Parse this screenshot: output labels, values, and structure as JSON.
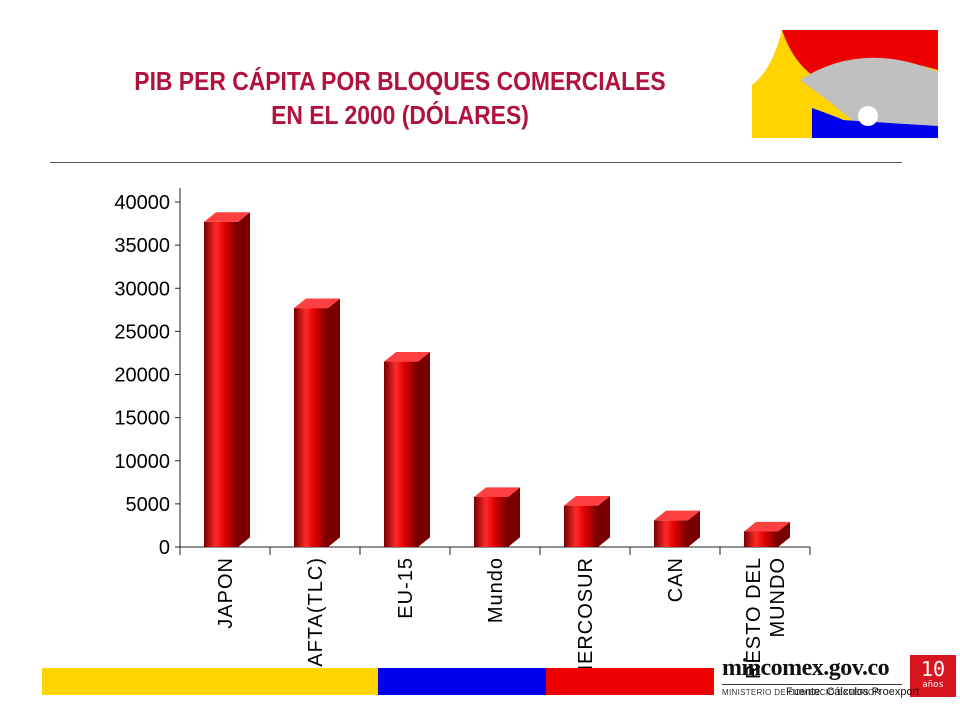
{
  "header": {
    "title_line1": "PIB PER CÁPITA POR BLOQUES COMERCIALES",
    "title_line2": "EN EL 2000 (DÓLARES)"
  },
  "colors": {
    "title": "#b0123d",
    "bar": "#e00000",
    "stripe_yellow": "#ffd400",
    "stripe_blue": "#0000ee",
    "stripe_red": "#ee0000",
    "badge": "#d8141e"
  },
  "chart_data": {
    "type": "bar",
    "title": "PIB PER CÁPITA POR BLOQUES COMERCIALES EN EL 2000 (DÓLARES)",
    "categories": [
      [
        "JAPON"
      ],
      [
        "NAFTA(TLC)"
      ],
      [
        "EU-15"
      ],
      [
        "Mundo"
      ],
      [
        "MERCOSUR"
      ],
      [
        "CAN"
      ],
      [
        "RESTO DEL",
        "MUNDO"
      ]
    ],
    "values": [
      37700,
      27700,
      21500,
      5800,
      4800,
      3100,
      1800
    ],
    "y_ticks": [
      "40000",
      "35000",
      "30000",
      "25000",
      "20000",
      "15000",
      "10000",
      "5000",
      "0"
    ],
    "ylim": [
      0,
      40000
    ],
    "grid": false,
    "legend": "none",
    "style": "3d-cylinder-bars"
  },
  "footer": {
    "brand": "mincomex.gov.co",
    "ministry": "MINISTERIO DE COMERCIO EXTERIOR",
    "badge_number": "10",
    "badge_word": "años",
    "source": "Fuente: Cálculos Proexport"
  }
}
